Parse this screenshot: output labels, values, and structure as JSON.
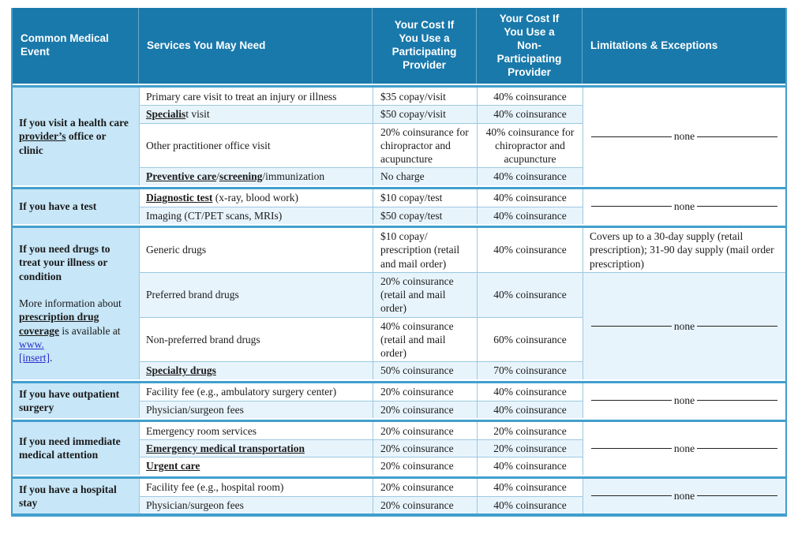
{
  "colors": {
    "header_bg": "#1979AB",
    "header_text": "#FFFFFF",
    "event_bg": "#C7E6F7",
    "stripe_bg": "#E8F4FC",
    "grid_line": "#9DC9E0",
    "section_line": "#419FCE",
    "text": "#1A1A1A",
    "link": "#2B2BCC"
  },
  "table": {
    "headers": [
      "Common Medical\nEvent",
      "Services You May Need",
      "Your Cost If\nYou Use a\nParticipating\nProvider",
      "Your Cost If\nYou Use a\nNon-\nParticipating\nProvider",
      "Limitations & Exceptions"
    ],
    "sections": [
      {
        "event": [
          {
            "t": "If you visit a health care ",
            "s": "b"
          },
          {
            "t": "provider’s",
            "s": "bu"
          },
          {
            "t": " office or clinic",
            "s": "b"
          }
        ],
        "rows": [
          {
            "service": [
              {
                "t": "Primary care visit to treat an injury or illness"
              }
            ],
            "participating": "$35 copay/visit",
            "non_participating": "40% coinsurance"
          },
          {
            "service": [
              {
                "t": "Specialis",
                "s": "bu"
              },
              {
                "t": "t visit"
              }
            ],
            "participating": "$50 copay/visit",
            "non_participating": "40% coinsurance"
          },
          {
            "service": [
              {
                "t": "Other practitioner office visit"
              }
            ],
            "participating": "20% coinsurance for chiropractor and acupuncture",
            "non_participating": "40% coinsurance for chiropractor and acupuncture"
          },
          {
            "service": [
              {
                "t": "Preventive care",
                "s": "bu"
              },
              {
                "t": "/"
              },
              {
                "t": "screening",
                "s": "bu"
              },
              {
                "t": "/immunization"
              }
            ],
            "participating": "No charge",
            "non_participating": "40% coinsurance"
          }
        ],
        "limitations": [
          {
            "type": "none",
            "label": "none",
            "span": 4,
            "bg": "white"
          }
        ]
      },
      {
        "event": [
          {
            "t": "If you have a test",
            "s": "b"
          }
        ],
        "rows": [
          {
            "service": [
              {
                "t": "Diagnostic test",
                "s": "bu"
              },
              {
                "t": " (x-ray, blood work)"
              }
            ],
            "participating": "$10 copay/test",
            "non_participating": "40% coinsurance"
          },
          {
            "service": [
              {
                "t": "Imaging (CT/PET scans, MRIs)"
              }
            ],
            "participating": "$50 copay/test",
            "non_participating": "40% coinsurance"
          }
        ],
        "limitations": [
          {
            "type": "none",
            "label": "none",
            "span": 2,
            "bg": "white"
          }
        ]
      },
      {
        "event": [
          {
            "t": "If you need drugs to treat your illness or condition",
            "s": "b"
          },
          {
            "t": "\n\n"
          },
          {
            "t": "More information about "
          },
          {
            "t": "prescription drug coverage",
            "s": "bu"
          },
          {
            "t": " is available at "
          },
          {
            "t": "www.\n[insert]",
            "s": "link"
          },
          {
            "t": "."
          }
        ],
        "rows": [
          {
            "service": [
              {
                "t": "Generic drugs"
              }
            ],
            "participating": "$10 copay/\nprescription (retail and mail order)",
            "non_participating": "40% coinsurance"
          },
          {
            "service": [
              {
                "t": "Preferred brand drugs"
              }
            ],
            "participating": "20% coinsurance (retail and mail order)",
            "non_participating": "40% coinsurance"
          },
          {
            "service": [
              {
                "t": "Non-preferred brand drugs"
              }
            ],
            "participating": "40% coinsurance (retail and mail order)",
            "non_participating": "60% coinsurance"
          },
          {
            "service": [
              {
                "t": "Specialty drugs",
                "s": "bu"
              }
            ],
            "participating": "50% coinsurance",
            "non_participating": "70% coinsurance"
          }
        ],
        "limitations": [
          {
            "type": "text",
            "text": "Covers up to a 30-day supply (retail prescription); 31-90 day supply (mail order prescription)",
            "span": 1,
            "bg": "white"
          },
          {
            "type": "none",
            "label": "none",
            "span": 3,
            "bg": "stripe"
          }
        ]
      },
      {
        "event": [
          {
            "t": "If you have outpatient surgery",
            "s": "b"
          }
        ],
        "rows": [
          {
            "service": [
              {
                "t": "Facility fee (e.g., ambulatory surgery center)"
              }
            ],
            "participating": "20% coinsurance",
            "non_participating": "40% coinsurance"
          },
          {
            "service": [
              {
                "t": "Physician/surgeon fees"
              }
            ],
            "participating": "20% coinsurance",
            "non_participating": "40% coinsurance"
          }
        ],
        "limitations": [
          {
            "type": "none",
            "label": "none",
            "span": 2,
            "bg": "white"
          }
        ]
      },
      {
        "event": [
          {
            "t": "If you need immediate medical attention",
            "s": "b"
          }
        ],
        "rows": [
          {
            "service": [
              {
                "t": "Emergency room services"
              }
            ],
            "participating": "20% coinsurance",
            "non_participating": "20% coinsurance"
          },
          {
            "service": [
              {
                "t": "Emergency medical transportation",
                "s": "bu"
              }
            ],
            "participating": "20% coinsurance",
            "non_participating": "20% coinsurance"
          },
          {
            "service": [
              {
                "t": "Urgent care",
                "s": "bu"
              }
            ],
            "participating": "20% coinsurance",
            "non_participating": "40% coinsurance"
          }
        ],
        "limitations": [
          {
            "type": "none",
            "label": "none",
            "span": 3,
            "bg": "white"
          }
        ]
      },
      {
        "event": [
          {
            "t": "If you have a hospital stay",
            "s": "b"
          }
        ],
        "rows": [
          {
            "service": [
              {
                "t": "Facility fee (e.g., hospital room)"
              }
            ],
            "participating": "20% coinsurance",
            "non_participating": "40% coinsurance"
          },
          {
            "service": [
              {
                "t": "Physician/surgeon fees"
              }
            ],
            "participating": "20% coinsurance",
            "non_participating": "40% coinsurance"
          }
        ],
        "limitations": [
          {
            "type": "none",
            "label": "none",
            "span": 2,
            "bg": "stripe"
          }
        ]
      }
    ]
  }
}
